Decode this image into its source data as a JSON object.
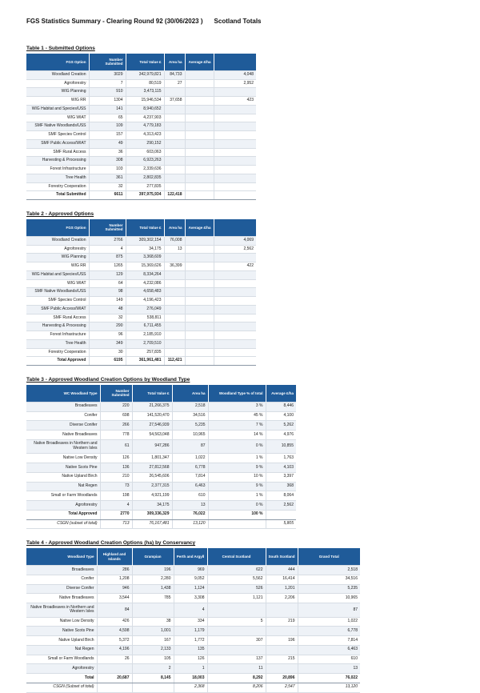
{
  "page": {
    "title": "FGS Statistics Summary - Clearing Round 92 (30/06/2023 )",
    "subtitle": "Scotland Totals"
  },
  "colors": {
    "header_bg": "#1f5b99",
    "row_stripe": "#eef2f7"
  },
  "tables": [
    {
      "label": "Table 1 - Submitted Options",
      "headers": [
        "FGS Option",
        "Number Submitted",
        "Total Value £",
        "Area ha",
        "Average £/ha",
        ""
      ],
      "rows": [
        {
          "kind": "data",
          "cells": [
            "Woodland Creation",
            "3029",
            "342,979,821",
            "84,733",
            "",
            "4,048"
          ]
        },
        {
          "kind": "data",
          "cells": [
            "Agroforestry",
            "7",
            "80,519",
            "27",
            "",
            "2,952"
          ]
        },
        {
          "kind": "data",
          "cells": [
            "WIG Planning",
            "910",
            "3,473,115",
            "",
            "",
            ""
          ]
        },
        {
          "kind": "data",
          "cells": [
            "WIG RR",
            "1304",
            "15,946,534",
            "37,658",
            "",
            "423"
          ]
        },
        {
          "kind": "data",
          "cells": [
            "WIG Habitat and Species/USS",
            "141",
            "8,940,652",
            "",
            "",
            ""
          ]
        },
        {
          "kind": "data",
          "cells": [
            "WIG WIAT",
            "65",
            "4,237,903",
            "",
            "",
            ""
          ]
        },
        {
          "kind": "data",
          "cells": [
            "SMF Native Woodlands/USS",
            "109",
            "4,779,183",
            "",
            "",
            ""
          ]
        },
        {
          "kind": "data",
          "cells": [
            "SMF Species Control",
            "157",
            "4,313,423",
            "",
            "",
            ""
          ]
        },
        {
          "kind": "data",
          "cells": [
            "SMF Public Access/WIAT",
            "49",
            "290,152",
            "",
            "",
            ""
          ]
        },
        {
          "kind": "data",
          "cells": [
            "SMF Rural Access",
            "36",
            "603,063",
            "",
            "",
            ""
          ]
        },
        {
          "kind": "data",
          "cells": [
            "Harvesting & Processing",
            "308",
            "6,923,263",
            "",
            "",
            ""
          ]
        },
        {
          "kind": "data",
          "cells": [
            "Forest Infrastructure",
            "103",
            "2,339,636",
            "",
            "",
            ""
          ]
        },
        {
          "kind": "data",
          "cells": [
            "Tree Health",
            "361",
            "2,802,835",
            "",
            "",
            ""
          ]
        },
        {
          "kind": "data",
          "cells": [
            "Forestry Cooperation",
            "32",
            "277,835",
            "",
            "",
            ""
          ]
        },
        {
          "kind": "total",
          "cells": [
            "Total Submitted",
            "6611",
            "397,975,934",
            "122,418",
            "",
            ""
          ]
        }
      ]
    },
    {
      "label": "Table 2 - Approved Options",
      "headers": [
        "FGS Option",
        "Number Submitted",
        "Total Value £",
        "Area ha",
        "Average £/ha",
        ""
      ],
      "rows": [
        {
          "kind": "data",
          "cells": [
            "Woodland Creation",
            "2766",
            "309,302,154",
            "76,008",
            "",
            "4,069"
          ]
        },
        {
          "kind": "data",
          "cells": [
            "Agroforestry",
            "4",
            "34,175",
            "13",
            "",
            "2,562"
          ]
        },
        {
          "kind": "data",
          "cells": [
            "WIG Planning",
            "875",
            "3,368,609",
            "",
            "",
            ""
          ]
        },
        {
          "kind": "data",
          "cells": [
            "WIG RR",
            "1265",
            "15,369,626",
            "36,399",
            "",
            "422"
          ]
        },
        {
          "kind": "data",
          "cells": [
            "WIG Habitat and Species/USS",
            "129",
            "8,334,264",
            "",
            "",
            ""
          ]
        },
        {
          "kind": "data",
          "cells": [
            "WIG WIAT",
            "64",
            "4,232,086",
            "",
            "",
            ""
          ]
        },
        {
          "kind": "data",
          "cells": [
            "SMF Native Woodlands/USS",
            "98",
            "4,658,483",
            "",
            "",
            ""
          ]
        },
        {
          "kind": "data",
          "cells": [
            "SMF Species Control",
            "149",
            "4,196,423",
            "",
            "",
            ""
          ]
        },
        {
          "kind": "data",
          "cells": [
            "SMF Public Access/WIAT",
            "48",
            "276,049",
            "",
            "",
            ""
          ]
        },
        {
          "kind": "data",
          "cells": [
            "SMF Rural Access",
            "32",
            "538,811",
            "",
            "",
            ""
          ]
        },
        {
          "kind": "data",
          "cells": [
            "Harvesting & Processing",
            "290",
            "6,711,455",
            "",
            "",
            ""
          ]
        },
        {
          "kind": "data",
          "cells": [
            "Forest Infrastructure",
            "96",
            "2,185,910",
            "",
            "",
            ""
          ]
        },
        {
          "kind": "data",
          "cells": [
            "Tree Health",
            "349",
            "2,709,510",
            "",
            "",
            ""
          ]
        },
        {
          "kind": "data",
          "cells": [
            "Forestry Cooperation",
            "30",
            "257,835",
            "",
            "",
            ""
          ]
        },
        {
          "kind": "total",
          "cells": [
            "Total Approved",
            "6195",
            "361,961,481",
            "112,421",
            "",
            ""
          ]
        }
      ]
    },
    {
      "label": "Table 3 - Approved Woodland Creation Options by Woodland Type",
      "headers": [
        "WC Woodland Type",
        "Number Submitted",
        "Total Value £",
        "Area ha",
        "Woodland Type % of total",
        "Average £/ha"
      ],
      "rows": [
        {
          "kind": "data",
          "cells": [
            "Broadleaves",
            "220",
            "21,266,375",
            "2,518",
            "3 %",
            "8,446"
          ]
        },
        {
          "kind": "data",
          "cells": [
            "Conifer",
            "698",
            "141,520,470",
            "34,516",
            "45 %",
            "4,100"
          ]
        },
        {
          "kind": "data",
          "cells": [
            "Diverse Conifer",
            "266",
            "27,546,939",
            "5,235",
            "7 %",
            "5,262"
          ]
        },
        {
          "kind": "data",
          "cells": [
            "Native Broadleaves",
            "778",
            "54,563,048",
            "10,965",
            "14 %",
            "4,976"
          ]
        },
        {
          "kind": "data",
          "cells": [
            "Native Broadleaves in Northern and Western Isles",
            "61",
            "947,286",
            "87",
            "0 %",
            "10,855"
          ]
        },
        {
          "kind": "data",
          "cells": [
            "Native Low Density",
            "126",
            "1,801,347",
            "1,022",
            "1 %",
            "1,763"
          ]
        },
        {
          "kind": "data",
          "cells": [
            "Native Scots Pine",
            "136",
            "27,812,568",
            "6,778",
            "9 %",
            "4,103"
          ]
        },
        {
          "kind": "data",
          "cells": [
            "Native Upland Birch",
            "210",
            "26,545,606",
            "7,814",
            "10 %",
            "3,397"
          ]
        },
        {
          "kind": "data",
          "cells": [
            "Nat Regen",
            "73",
            "2,377,315",
            "6,463",
            "9 %",
            "368"
          ]
        },
        {
          "kind": "data",
          "cells": [
            "Small or Farm Woodlands",
            "198",
            "4,921,199",
            "610",
            "1 %",
            "8,064"
          ]
        },
        {
          "kind": "data",
          "cells": [
            "Agroforestry",
            "4",
            "34,175",
            "13",
            "0 %",
            "2,562"
          ]
        },
        {
          "kind": "total",
          "cells": [
            "Total Approved",
            "2770",
            "309,336,329",
            "76,022",
            "100 %",
            ""
          ]
        },
        {
          "kind": "subset",
          "cells": [
            "CSGN (subset of total)",
            "713",
            "76,167,481",
            "13,120",
            "",
            "5,805"
          ]
        }
      ]
    },
    {
      "label": "Table 4 - Approved Woodland Creation Options (ha) by Conservancy",
      "headers": [
        "Woodland Type",
        "Highland and Islands",
        "Grampian",
        "Perth and Argyll",
        "Central Scotland",
        "South Scotland",
        "Grand Total"
      ],
      "rows": [
        {
          "kind": "data",
          "cells": [
            "Broadleaves",
            "286",
            "196",
            "969",
            "622",
            "444",
            "2,518"
          ]
        },
        {
          "kind": "data",
          "cells": [
            "Conifer",
            "1,208",
            "2,280",
            "9,052",
            "5,562",
            "16,414",
            "34,516"
          ]
        },
        {
          "kind": "data",
          "cells": [
            "Diverse Conifer",
            "946",
            "1,438",
            "1,124",
            "526",
            "1,201",
            "5,235"
          ]
        },
        {
          "kind": "data",
          "cells": [
            "Native Broadleaves",
            "3,544",
            "785",
            "3,308",
            "1,121",
            "2,206",
            "10,965"
          ]
        },
        {
          "kind": "data",
          "cells": [
            "Native Broadleaves in Northern and Western Isles",
            "84",
            "",
            "4",
            "",
            "",
            "87"
          ]
        },
        {
          "kind": "data",
          "cells": [
            "Native Low Density",
            "426",
            "38",
            "334",
            "5",
            "219",
            "1,022"
          ]
        },
        {
          "kind": "data",
          "cells": [
            "Native Scots Pine",
            "4,598",
            "1,001",
            "1,179",
            "",
            "",
            "6,778"
          ]
        },
        {
          "kind": "data",
          "cells": [
            "Native Upland Birch",
            "5,372",
            "167",
            "1,772",
            "307",
            "196",
            "7,814"
          ]
        },
        {
          "kind": "data",
          "cells": [
            "Nat Regen",
            "4,196",
            "2,133",
            "135",
            "",
            "",
            "6,463"
          ]
        },
        {
          "kind": "data",
          "cells": [
            "Small or Farm Woodlands",
            "26",
            "105",
            "126",
            "137",
            "215",
            "610"
          ]
        },
        {
          "kind": "data",
          "cells": [
            "Agroforestry",
            "",
            "2",
            "1",
            "11",
            "",
            "13"
          ]
        },
        {
          "kind": "total",
          "cells": [
            "Total",
            "20,687",
            "8,145",
            "18,003",
            "8,292",
            "20,896",
            "76,022"
          ]
        },
        {
          "kind": "subset",
          "cells": [
            "CSGN (Subset of total)",
            "",
            "",
            "2,368",
            "8,206",
            "2,547",
            "13,120"
          ]
        }
      ]
    }
  ]
}
